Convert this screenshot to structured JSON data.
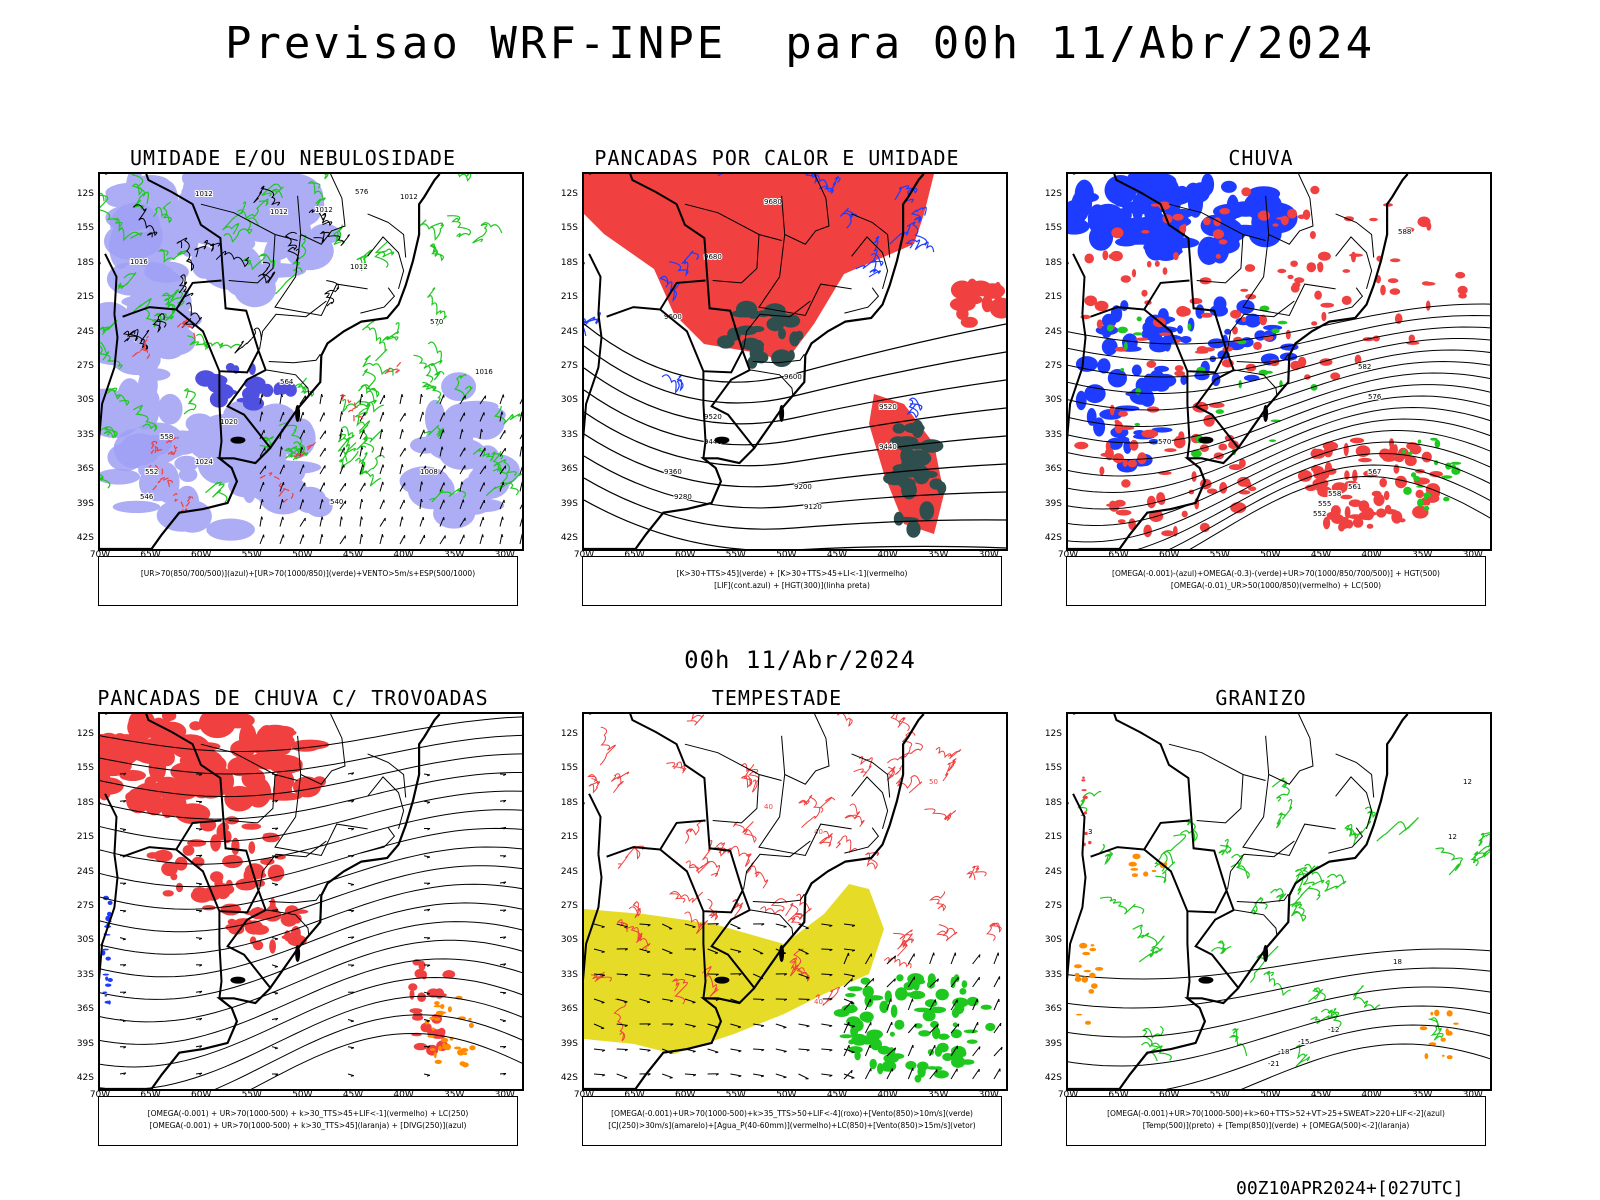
{
  "header": {
    "title": "Previsao WRF-INPE  para 00h 11/Abr/2024",
    "mid_time": "00h 11/Abr/2024",
    "footer_stamp": "00Z10APR2024+[027UTC]"
  },
  "axes": {
    "lat_labels": [
      "12S",
      "15S",
      "18S",
      "21S",
      "24S",
      "27S",
      "30S",
      "33S",
      "36S",
      "39S",
      "42S"
    ],
    "lon_labels": [
      "70W",
      "65W",
      "60W",
      "55W",
      "50W",
      "45W",
      "40W",
      "35W",
      "30W"
    ]
  },
  "colors": {
    "rh_blue": "#9f9ff5",
    "blue": "#1e3cff",
    "green": "#1ec81e",
    "red": "#f04040",
    "darkgreen": "#2f4f4f",
    "orange": "#ff8c00",
    "yellow": "#e6dc28"
  },
  "panels": [
    {
      "id": "umidade",
      "title": "UMIDADE E/OU NEBULOSIDADE",
      "legend": [
        "[UR>70(850/700/500)](azul)+[UR>70(1000/850)](verde)+VENTO>5m/s+ESP(500/1000)"
      ],
      "contour_labels": [
        "1012",
        "1012",
        "1012",
        "1012",
        "1016",
        "1020",
        "1024",
        "1012",
        "1016",
        "1008",
        "576",
        "570",
        "564",
        "558",
        "552",
        "546",
        "540"
      ]
    },
    {
      "id": "pancadas-calor",
      "title": "PANCADAS POR CALOR E UMIDADE",
      "legend": [
        "[K>30+TTS>45](verde) + [K>30+TTS>45+LI<-1](vermelho)",
        "[LIF](cont.azul) + [HGT(300)](linha preta)"
      ],
      "contour_labels": [
        "9680",
        "9680",
        "9600",
        "9520",
        "9440",
        "9360",
        "9280",
        "9200",
        "9120",
        "9520",
        "9440",
        "9600"
      ]
    },
    {
      "id": "chuva",
      "title": "CHUVA",
      "legend": [
        "[OMEGA(-0.001)-(azul)+OMEGA(-0.3)-(verde)+UR>70(1000/850/700/500)] + HGT(500)",
        "[OMEGA(-0.01)_UR>50(1000/850)(vermelho) + LC(500)"
      ],
      "contour_labels": [
        "588",
        "582",
        "576",
        "570",
        "567",
        "561",
        "558",
        "555",
        "552"
      ]
    },
    {
      "id": "pancadas-trovoadas",
      "title": "PANCADAS DE CHUVA C/ TROVOADAS",
      "legend": [
        "[OMEGA(-0.001) + UR>70(1000-500) + k>30_TTS>45+LIF<-1](vermelho) + LC(250)",
        "[OMEGA(-0.001) + UR>70(1000-500) + k>30_TTS>45](laranja) + [DIVG(250)](azul)"
      ],
      "contour_labels": []
    },
    {
      "id": "tempestade",
      "title": "TEMPESTADE",
      "legend": [
        "[OMEGA(-0.001)+UR>70(1000-500)+k>35_TTS>50+LIF<-4](roxo)+[Vento(850)>10m/s](verde)",
        "[CJ(250)>30m/s](amarelo)+[Agua_P(40-60mm)](vermelho)+LC(850)+[Vento(850)>15m/s](vetor)"
      ],
      "contour_labels": [
        "40",
        "40",
        "50",
        "40"
      ]
    },
    {
      "id": "granizo",
      "title": "GRANIZO",
      "legend": [
        "[OMEGA(-0.001)+UR>70(1000-500)+k>60+TTS>52+VT>25+SWEAT>220+LIF<-2](azul)",
        "[Temp(500)](preto) + [Temp(850)](verde) + [OMEGA(500)<-2](laranja)"
      ],
      "contour_labels": [
        "-12",
        "-15",
        "-18",
        "-21",
        "12",
        "12",
        "18",
        "3"
      ]
    }
  ]
}
